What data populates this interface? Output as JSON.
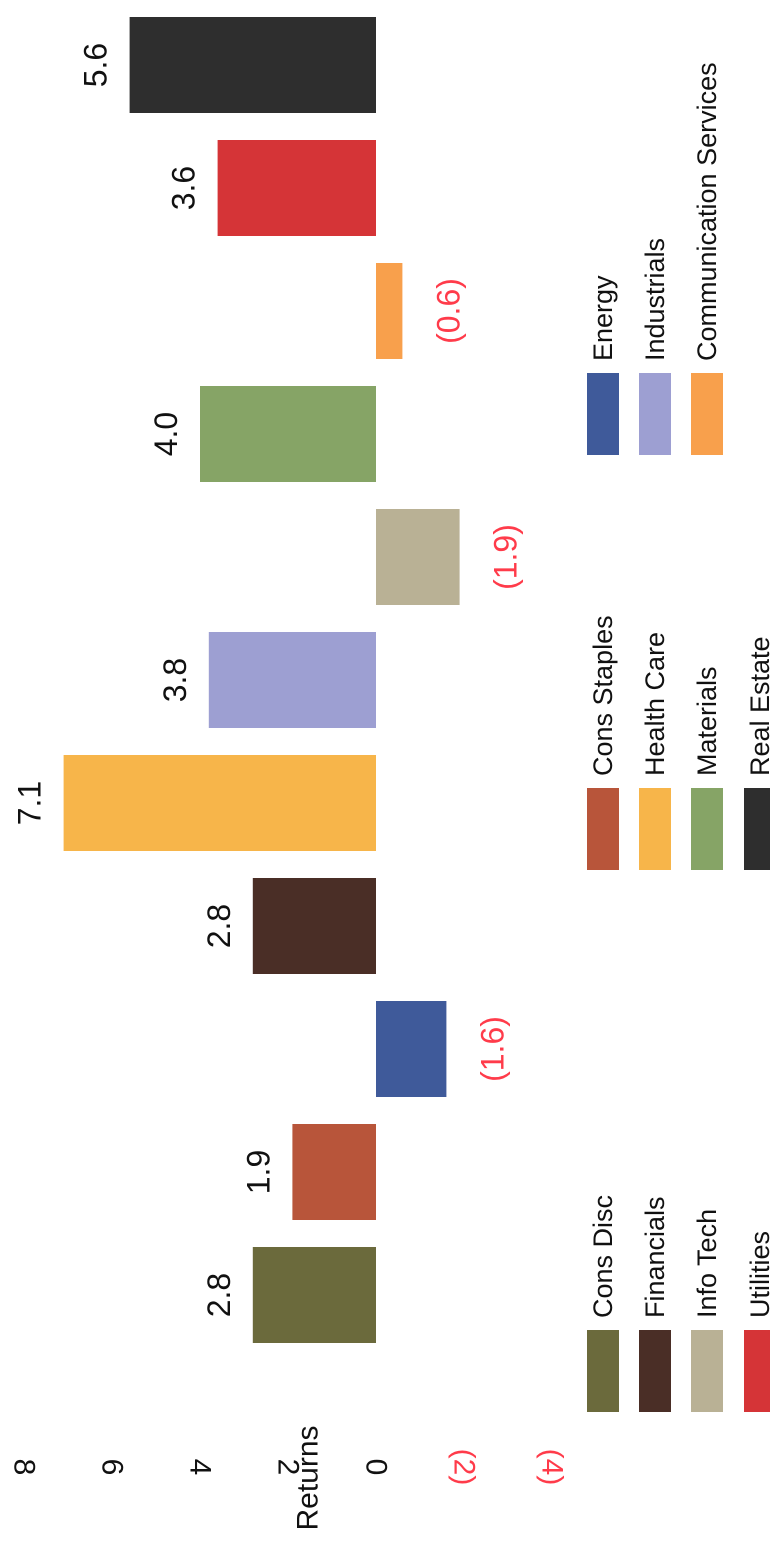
{
  "chart_data": {
    "type": "bar",
    "orientation": "rotated",
    "ylabel": "Returns",
    "ylim": [
      -4,
      8
    ],
    "y_ticks": [
      {
        "value": 8,
        "label": "8",
        "color": "#111111"
      },
      {
        "value": 6,
        "label": "6",
        "color": "#111111"
      },
      {
        "value": 4,
        "label": "4",
        "color": "#111111"
      },
      {
        "value": 2,
        "label": "2",
        "color": "#111111"
      },
      {
        "value": 0,
        "label": "0",
        "color": "#111111"
      },
      {
        "value": -2,
        "label": "(2)",
        "color": "#ff3b4a"
      },
      {
        "value": -4,
        "label": "(4)",
        "color": "#ff3b4a"
      }
    ],
    "bars": [
      {
        "name": "Cons Disc",
        "value": 2.8,
        "label": "2.8",
        "color": "#6b6a3c"
      },
      {
        "name": "Cons Staples",
        "value": 1.9,
        "label": "1.9",
        "color": "#b8553a"
      },
      {
        "name": "Energy",
        "value": -1.6,
        "label": "(1.6)",
        "color": "#3f5a9a"
      },
      {
        "name": "Financials",
        "value": 2.8,
        "label": "2.8",
        "color": "#4a2e26"
      },
      {
        "name": "Health Care",
        "value": 7.1,
        "label": "7.1",
        "color": "#f7b54a"
      },
      {
        "name": "Industrials",
        "value": 3.8,
        "label": "3.8",
        "color": "#9d9fd2"
      },
      {
        "name": "Info Tech",
        "value": -1.9,
        "label": "(1.9)",
        "color": "#b9b195"
      },
      {
        "name": "Materials",
        "value": 4.0,
        "label": "4.0",
        "color": "#86a466"
      },
      {
        "name": "Communication Services",
        "value": -0.6,
        "label": "(0.6)",
        "color": "#f8a04c"
      },
      {
        "name": "Utilities",
        "value": 3.6,
        "label": "3.6",
        "color": "#d53437"
      },
      {
        "name": "Real Estate",
        "value": 5.6,
        "label": "5.6",
        "color": "#2e2e2e"
      }
    ],
    "positive_label_color": "#111111",
    "negative_label_color": "#ff3b4a",
    "legend": {
      "placement": "bottom",
      "columns": [
        [
          "Cons Disc",
          "Financials",
          "Info Tech",
          "Utilities"
        ],
        [
          "Cons Staples",
          "Health Care",
          "Materials",
          "Real Estate"
        ],
        [
          "Energy",
          "Industrials",
          "Communication Services"
        ]
      ]
    }
  }
}
